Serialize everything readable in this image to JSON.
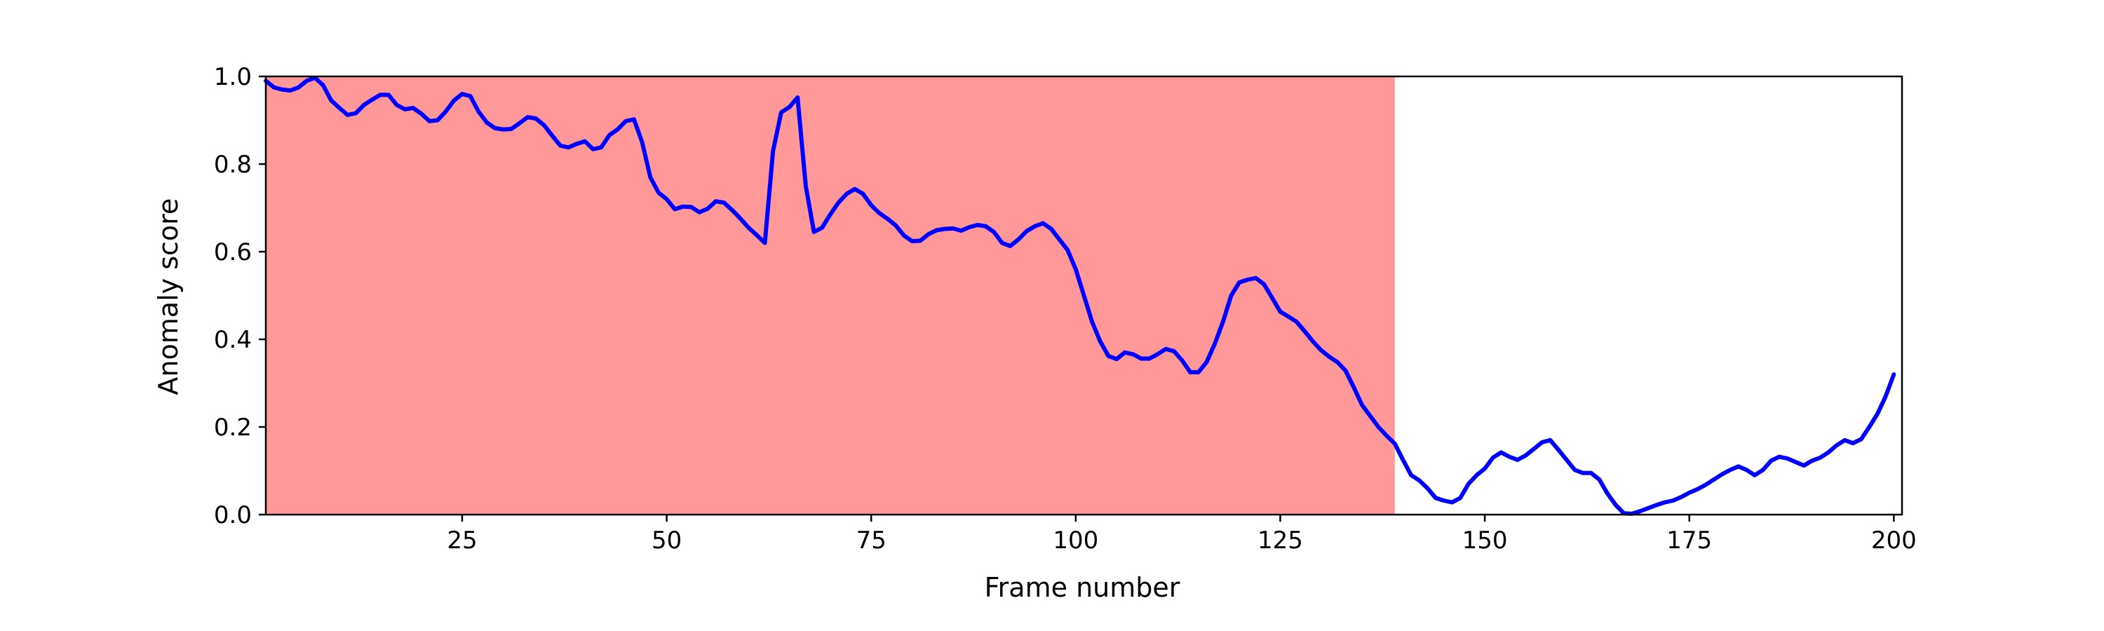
{
  "chart_data": {
    "type": "line",
    "title": "",
    "xlabel": "Frame number",
    "ylabel": "Anomaly score",
    "xlim": [
      1,
      201
    ],
    "ylim": [
      0,
      1.0
    ],
    "x_ticks": [
      25,
      50,
      75,
      100,
      125,
      150,
      175,
      200
    ],
    "x_tick_labels": [
      "25",
      "50",
      "75",
      "100",
      "125",
      "150",
      "175",
      "200"
    ],
    "y_ticks": [
      0.0,
      0.2,
      0.4,
      0.6,
      0.8,
      1.0
    ],
    "y_tick_labels": [
      "0.0",
      "0.2",
      "0.4",
      "0.6",
      "0.8",
      "1.0"
    ],
    "grid": false,
    "line_color": "#0000ff",
    "shaded_region": {
      "x_start": 1,
      "x_end": 139,
      "color": "#ff9999"
    },
    "series": [
      {
        "x": [
          1,
          2,
          3,
          4,
          5,
          6,
          7,
          8,
          9,
          10,
          11,
          12,
          13,
          14,
          15,
          16,
          17,
          18,
          19,
          20,
          21,
          22,
          23,
          24,
          25,
          26,
          27,
          28,
          29,
          30,
          31,
          32,
          33,
          34,
          35,
          36,
          37,
          38,
          39,
          40,
          41,
          42,
          43,
          44,
          45,
          46,
          47,
          48,
          49,
          50,
          51,
          52,
          53,
          54,
          55,
          56,
          57,
          58,
          59,
          60,
          61,
          62,
          63,
          64,
          65,
          66,
          67,
          68,
          69,
          70,
          71,
          72,
          73,
          74,
          75,
          76,
          77,
          78,
          79,
          80,
          81,
          82,
          83,
          84,
          85,
          86,
          87,
          88,
          89,
          90,
          91,
          92,
          93,
          94,
          95,
          96,
          97,
          98,
          99,
          100,
          101,
          102,
          103,
          104,
          105,
          106,
          107,
          108,
          109,
          110,
          111,
          112,
          113,
          114,
          115,
          116,
          117,
          118,
          119,
          120,
          121,
          122,
          123,
          124,
          125,
          126,
          127,
          128,
          129,
          130,
          131,
          132,
          133,
          134,
          135,
          136,
          137,
          138,
          139,
          140,
          141,
          142,
          143,
          144,
          145,
          146,
          147,
          148,
          149,
          150,
          151,
          152,
          153,
          154,
          155,
          156,
          157,
          158,
          159,
          160,
          161,
          162,
          163,
          164,
          165,
          166,
          167,
          168,
          169,
          170,
          171,
          172,
          173,
          174,
          175,
          176,
          177,
          178,
          179,
          180,
          181,
          182,
          183,
          184,
          185,
          186,
          187,
          188,
          189,
          190,
          191,
          192,
          193,
          194,
          195,
          196,
          197,
          198,
          199,
          200
        ],
        "values": [
          0.99,
          0.975,
          0.97,
          0.968,
          0.975,
          0.99,
          0.997,
          0.98,
          0.945,
          0.928,
          0.912,
          0.916,
          0.935,
          0.947,
          0.958,
          0.958,
          0.935,
          0.925,
          0.928,
          0.915,
          0.898,
          0.9,
          0.92,
          0.945,
          0.96,
          0.955,
          0.92,
          0.895,
          0.882,
          0.879,
          0.88,
          0.893,
          0.907,
          0.904,
          0.889,
          0.865,
          0.842,
          0.838,
          0.846,
          0.852,
          0.834,
          0.838,
          0.866,
          0.879,
          0.898,
          0.902,
          0.85,
          0.77,
          0.735,
          0.72,
          0.697,
          0.703,
          0.702,
          0.69,
          0.698,
          0.715,
          0.712,
          0.695,
          0.676,
          0.655,
          0.638,
          0.62,
          0.83,
          0.918,
          0.93,
          0.952,
          0.75,
          0.645,
          0.655,
          0.685,
          0.712,
          0.732,
          0.743,
          0.732,
          0.706,
          0.688,
          0.675,
          0.66,
          0.637,
          0.624,
          0.625,
          0.64,
          0.649,
          0.652,
          0.653,
          0.648,
          0.656,
          0.661,
          0.658,
          0.645,
          0.62,
          0.613,
          0.628,
          0.647,
          0.658,
          0.665,
          0.652,
          0.628,
          0.604,
          0.56,
          0.5,
          0.44,
          0.395,
          0.362,
          0.355,
          0.37,
          0.366,
          0.356,
          0.356,
          0.366,
          0.378,
          0.373,
          0.352,
          0.325,
          0.325,
          0.348,
          0.39,
          0.44,
          0.5,
          0.53,
          0.536,
          0.54,
          0.526,
          0.495,
          0.463,
          0.452,
          0.44,
          0.418,
          0.395,
          0.375,
          0.36,
          0.348,
          0.328,
          0.29,
          0.25,
          0.225,
          0.2,
          0.18,
          0.162,
          0.125,
          0.09,
          0.078,
          0.06,
          0.038,
          0.032,
          0.028,
          0.038,
          0.07,
          0.09,
          0.105,
          0.13,
          0.142,
          0.132,
          0.125,
          0.135,
          0.15,
          0.165,
          0.17,
          0.148,
          0.125,
          0.102,
          0.095,
          0.095,
          0.08,
          0.048,
          0.022,
          0.003,
          0.002,
          0.008,
          0.015,
          0.022,
          0.028,
          0.032,
          0.04,
          0.05,
          0.058,
          0.068,
          0.08,
          0.092,
          0.102,
          0.11,
          0.102,
          0.09,
          0.102,
          0.123,
          0.132,
          0.128,
          0.12,
          0.112,
          0.123,
          0.13,
          0.142,
          0.158,
          0.17,
          0.163,
          0.172,
          0.2,
          0.23,
          0.27,
          0.32
        ]
      }
    ]
  }
}
